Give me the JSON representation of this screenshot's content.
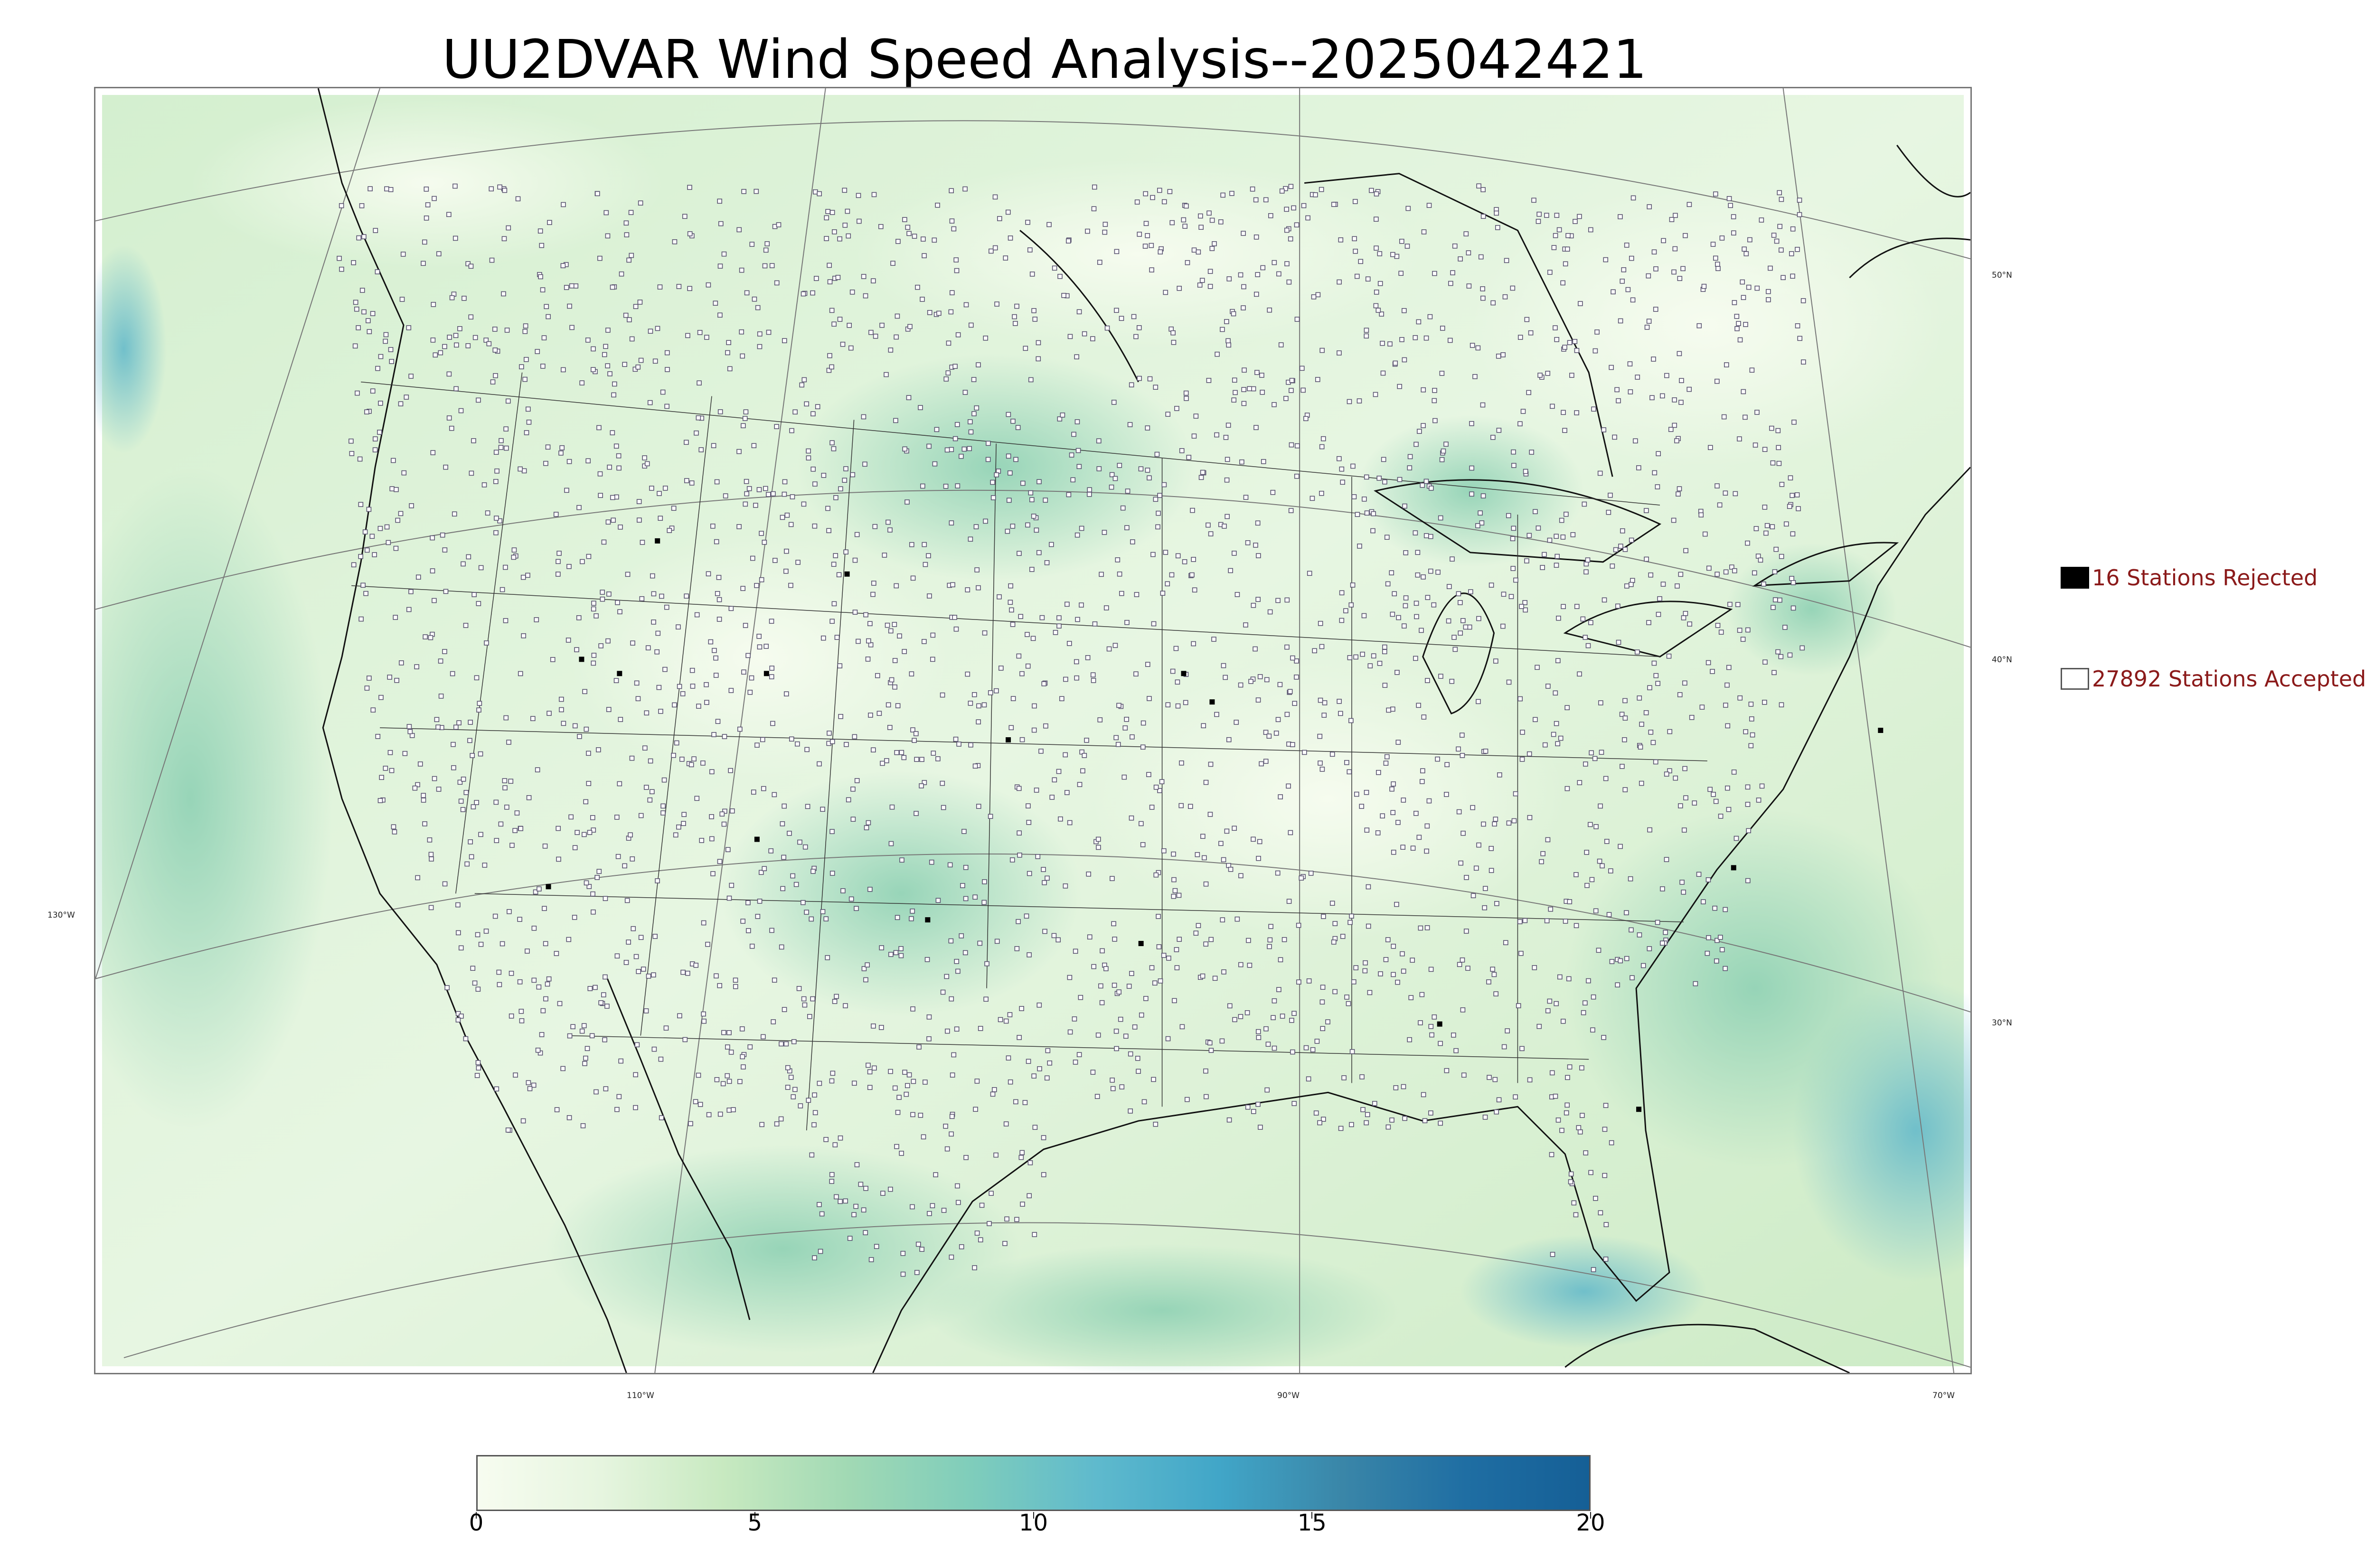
{
  "title": "UU2DVAR Wind Speed Analysis--2025042421",
  "map": {
    "field": "wind-speed",
    "projection": "lambert-conformal",
    "basemap_colors": {
      "background": "#e7f6e2",
      "light": "#f3fbef",
      "mid": "#c9ebc4",
      "strong": "#8fd1b4",
      "ocean_high": "#5fb7c9",
      "peak": "#3f9bc8"
    },
    "lon_labels": [
      "130°W",
      "110°W",
      "90°W",
      "70°W"
    ],
    "lat_labels": [
      "50°N",
      "40°N",
      "30°N"
    ]
  },
  "legend": {
    "rejected_label": "16 Stations Rejected",
    "accepted_label": "27892 Stations Accepted",
    "rejected_color": "#000000",
    "accepted_color": "#ffffff",
    "label_color": "#8b1a1a"
  },
  "colorbar": {
    "min": 0,
    "max": 20,
    "ticks": [
      "0",
      "5",
      "10",
      "15",
      "20"
    ],
    "colors": [
      "#f7fcf0",
      "#e6f5df",
      "#c7e9c0",
      "#a1d9b4",
      "#7fcdbb",
      "#5fbacd",
      "#41a6c8",
      "#3a86a8",
      "#1f6ea3",
      "#155f96"
    ]
  }
}
